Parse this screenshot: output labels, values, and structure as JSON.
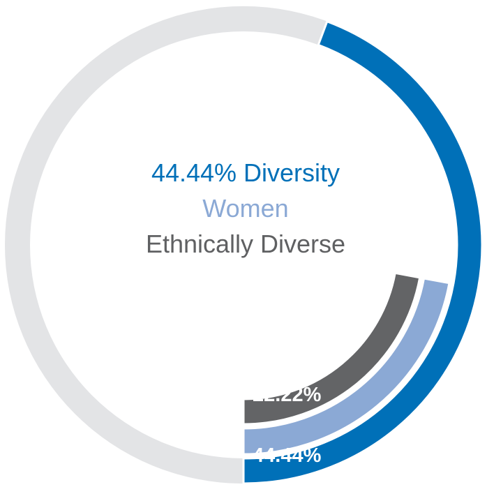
{
  "chart_data": {
    "type": "radial-bar",
    "title": "",
    "legend_placement": "center",
    "max_value": 100,
    "series": [
      {
        "name": "44.44% Diversity",
        "value": 44.44,
        "value_label": "44.44%",
        "color": "#0070B8"
      },
      {
        "name": "Women",
        "value": 22.22,
        "value_label": "22.22%",
        "color": "#8BA9D5"
      },
      {
        "name": "Ethnically Diverse",
        "value": 22.22,
        "value_label": "22.22%",
        "color": "#636466"
      }
    ],
    "track_color": "#E3E4E6",
    "legend_colors": [
      "#0070B8",
      "#8BA9D5",
      "#5F6062"
    ]
  }
}
